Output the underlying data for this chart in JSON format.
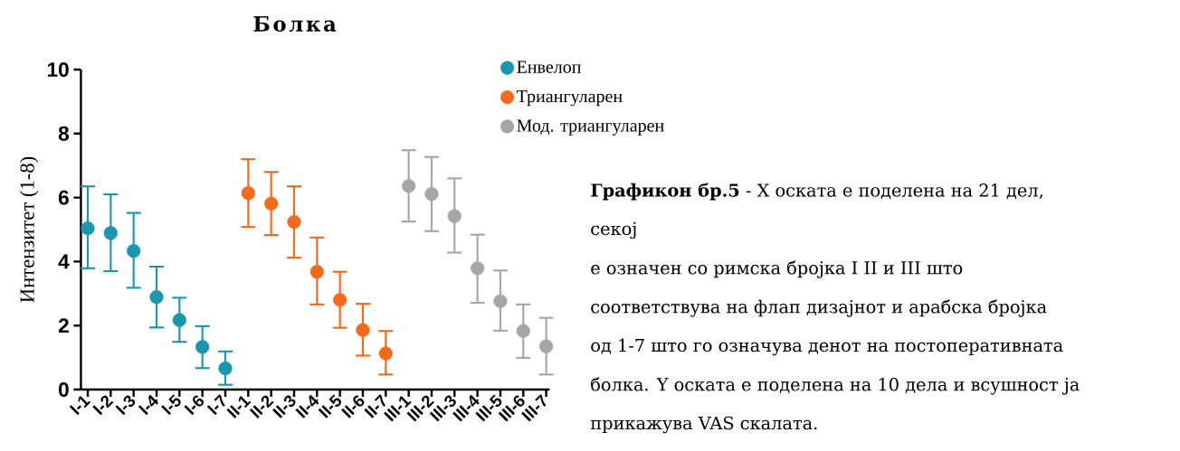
{
  "chart_data": {
    "type": "scatter",
    "title": "Болка",
    "ylabel": "Интензитет (1-8)",
    "categories": [
      "I-1",
      "I-2",
      "I-3",
      "I-4",
      "I-5",
      "I-6",
      "I-7",
      "II-1",
      "II-2",
      "II-3",
      "II-4",
      "II-5",
      "II-6",
      "II-7",
      "III-1",
      "III-2",
      "III-3",
      "III-4",
      "III-5",
      "III-6",
      "III-7"
    ],
    "series": [
      {
        "name": "Енвелоп",
        "color": "#1b96ad",
        "values": [
          5.04,
          4.89,
          4.33,
          2.89,
          2.17,
          1.33,
          0.66,
          null,
          null,
          null,
          null,
          null,
          null,
          null,
          null,
          null,
          null,
          null,
          null,
          null,
          null
        ],
        "errors": [
          [
            3.79,
            6.35
          ],
          [
            3.7,
            6.1
          ],
          [
            3.18,
            5.52
          ],
          [
            1.94,
            3.84
          ],
          [
            1.49,
            2.87
          ],
          [
            0.67,
            1.98
          ],
          [
            0.15,
            1.19
          ],
          null,
          null,
          null,
          null,
          null,
          null,
          null,
          null,
          null,
          null,
          null,
          null,
          null,
          null
        ]
      },
      {
        "name": "Триангуларен",
        "color": "#f26a1b",
        "values": [
          null,
          null,
          null,
          null,
          null,
          null,
          null,
          6.14,
          5.81,
          5.24,
          3.68,
          2.8,
          1.86,
          1.13,
          null,
          null,
          null,
          null,
          null,
          null,
          null
        ],
        "errors": [
          null,
          null,
          null,
          null,
          null,
          null,
          null,
          [
            5.08,
            7.2
          ],
          [
            4.83,
            6.8
          ],
          [
            4.12,
            6.35
          ],
          [
            2.66,
            4.75
          ],
          [
            1.93,
            3.68
          ],
          [
            1.06,
            2.68
          ],
          [
            0.47,
            1.83
          ],
          null,
          null,
          null,
          null,
          null,
          null,
          null
        ]
      },
      {
        "name": "Мод. триангуларен",
        "color": "#a6a6a6",
        "values": [
          null,
          null,
          null,
          null,
          null,
          null,
          null,
          null,
          null,
          null,
          null,
          null,
          null,
          null,
          6.36,
          6.11,
          5.42,
          3.79,
          2.76,
          1.83,
          1.35
        ],
        "errors": [
          null,
          null,
          null,
          null,
          null,
          null,
          null,
          null,
          null,
          null,
          null,
          null,
          null,
          null,
          [
            5.25,
            7.48
          ],
          [
            4.95,
            7.27
          ],
          [
            4.28,
            6.6
          ],
          [
            2.71,
            4.84
          ],
          [
            1.84,
            3.72
          ],
          [
            0.99,
            2.66
          ],
          [
            0.47,
            2.24
          ]
        ]
      }
    ],
    "ylim": [
      0,
      10
    ],
    "yticks": [
      0,
      2,
      4,
      6,
      8,
      10
    ],
    "legend": "top right",
    "marker": "circle",
    "annotations": [
      "**Графикон бр.5** - X оската е поделена на 21 дел,",
      "секој",
      "е означен со римска бројка I II и III што",
      "соответствува на флап дизајнот и арабска бројка",
      "од 1-7 што го означува денот на постоперативната",
      "болка. Y оската е поделена на 10 дела и всушност ја",
      "прикажува VAS скалата."
    ]
  }
}
